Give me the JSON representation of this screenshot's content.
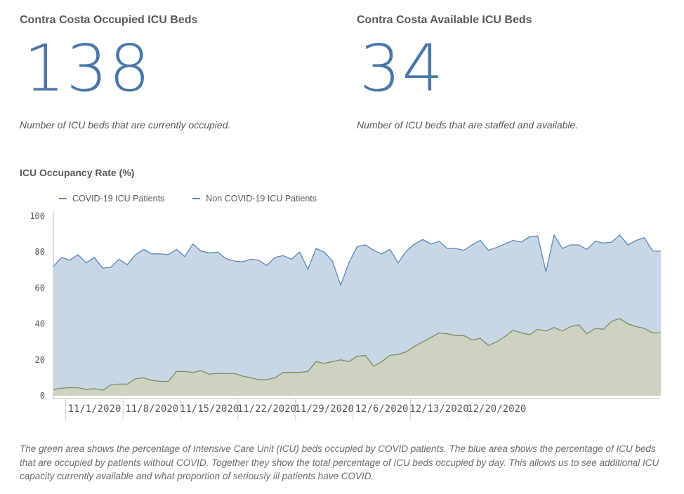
{
  "kpi_occupied": {
    "title": "Contra Costa Occupied ICU Beds",
    "value": "138",
    "description": "Number of ICU beds that are currently occupied."
  },
  "kpi_available": {
    "title": "Contra Costa Available ICU Beds",
    "value": "34",
    "description": "Number of ICU beds that are staffed and available."
  },
  "caption": "The green area shows the percentage of Intensive Care Unit (ICU) beds occupied by COVID patients. The blue area shows the percentage of ICU beds that are occupied by patients without COVID. Together they show the total percentage of ICU beds occupied by day. This allows us to see additional ICU capacity currently available and what proportion of seriously ill patients have COVID.",
  "colors": {
    "kpi": "#4a76a8",
    "covid_fill": "#cdd3c0",
    "covid_line": "#7c8b63",
    "noncovid_fill": "#c8d7e6",
    "noncovid_line": "#5b87b7"
  },
  "chart_data": {
    "type": "area",
    "title": "ICU Occupancy Rate (%)",
    "xlabel": "",
    "ylabel": "",
    "ylim": [
      0,
      100
    ],
    "yticks": [
      0,
      20,
      40,
      60,
      80,
      100
    ],
    "x_tick_labels": [
      "11/1/2020",
      "11/8/2020",
      "11/15/2020",
      "11/22/2020",
      "11/29/2020",
      "12/6/2020",
      "12/13/2020",
      "12/20/2020"
    ],
    "x_tick_index": [
      5,
      12,
      19,
      26,
      33,
      40,
      47,
      54
    ],
    "grid": false,
    "legend": "top-left",
    "series": [
      {
        "name": "COVID-19 ICU Patients",
        "values": [
          3.5,
          4.2,
          4.5,
          4.5,
          3.5,
          4.0,
          3.0,
          6.0,
          6.5,
          6.5,
          9.5,
          10.0,
          8.5,
          8.0,
          8.0,
          13.5,
          13.5,
          13.0,
          14.0,
          12.0,
          12.5,
          12.3,
          12.5,
          11.0,
          10.0,
          9.0,
          9.0,
          10.0,
          13.0,
          13.0,
          13.0,
          13.5,
          19.0,
          18.0,
          19.0,
          20.0,
          19.0,
          22.0,
          22.5,
          16.5,
          19.0,
          22.5,
          23.0,
          24.5,
          27.5,
          30.0,
          32.5,
          35.0,
          34.5,
          33.5,
          33.5,
          31.0,
          32.0,
          28.0,
          30.0,
          33.0,
          36.5,
          35.0,
          34.0,
          37.0,
          36.0,
          38.0,
          36.0,
          38.5,
          39.5,
          34.5,
          37.5,
          37.0,
          41.5,
          43.0,
          40.0,
          38.5,
          37.5,
          35.0,
          35.0
        ]
      },
      {
        "name": "Non COVID-19 ICU Patients",
        "values_total": [
          72.0,
          77.0,
          75.5,
          78.5,
          74.0,
          77.0,
          71.0,
          71.5,
          76.0,
          73.0,
          78.5,
          81.5,
          79.0,
          79.0,
          78.5,
          81.5,
          77.5,
          84.5,
          80.5,
          79.5,
          80.0,
          76.5,
          75.0,
          74.5,
          76.0,
          75.5,
          72.5,
          77.0,
          78.0,
          76.0,
          80.0,
          70.5,
          82.0,
          80.0,
          75.0,
          61.5,
          74.0,
          83.0,
          84.0,
          81.0,
          79.0,
          81.5,
          74.0,
          80.5,
          84.5,
          87.0,
          84.5,
          86.0,
          82.0,
          82.0,
          81.0,
          84.0,
          86.5,
          81.0,
          82.5,
          84.5,
          86.5,
          85.5,
          88.5,
          89.0,
          69.0,
          89.5,
          82.0,
          84.0,
          84.0,
          81.5,
          86.0,
          85.0,
          85.5,
          89.5,
          84.0,
          86.5,
          88.0,
          80.5,
          80.5
        ]
      }
    ]
  }
}
